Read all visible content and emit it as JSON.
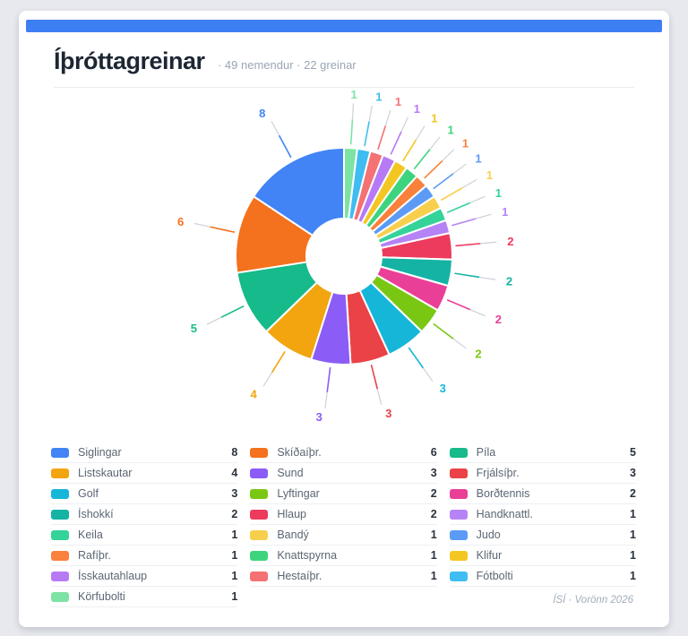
{
  "header": {
    "title": "Íþróttagreinar",
    "subtitle": "· 49 nemendur · 22 greinar"
  },
  "footer": {
    "text": "ÍSÍ · Vorönn 2026"
  },
  "theme": {
    "accent_bar": "#3e7ef3",
    "page_bg": "#e7e9ee",
    "card_bg": "#ffffff",
    "title_color": "#1d2733",
    "subtitle_color": "#9aa6b4",
    "legend_label_color": "#5b6673",
    "legend_value_color": "#2a323e",
    "connector_gray": "#ccd2d9"
  },
  "chart_data": {
    "type": "pie",
    "title": "Íþróttagreinar",
    "subtitle": "· 49 nemendur · 22 greinar",
    "donut": true,
    "inner_radius_ratio": 0.35,
    "start_angle_deg": 0,
    "direction": "clockwise",
    "data_labels": "values outside with colored connectors",
    "slices": [
      {
        "label": "Körfubolti",
        "value": 1,
        "color": "#7de3a4"
      },
      {
        "label": "Fótbolti",
        "value": 1,
        "color": "#3fbcf2"
      },
      {
        "label": "Hestaíþr.",
        "value": 1,
        "color": "#f47174"
      },
      {
        "label": "Ísskautahlaup",
        "value": 1,
        "color": "#b77af5"
      },
      {
        "label": "Klifur",
        "value": 1,
        "color": "#f3c622"
      },
      {
        "label": "Knattspyrna",
        "value": 1,
        "color": "#3ed47e"
      },
      {
        "label": "Rafíþr.",
        "value": 1,
        "color": "#f9813c"
      },
      {
        "label": "Judo",
        "value": 1,
        "color": "#5b9bf5"
      },
      {
        "label": "Bandý",
        "value": 1,
        "color": "#f8cf4d"
      },
      {
        "label": "Keila",
        "value": 1,
        "color": "#34d399"
      },
      {
        "label": "Handknattl.",
        "value": 1,
        "color": "#b583f5"
      },
      {
        "label": "Hlaup",
        "value": 2,
        "color": "#ec3b5d"
      },
      {
        "label": "Íshokkí",
        "value": 2,
        "color": "#14b3a4"
      },
      {
        "label": "Borðtennis",
        "value": 2,
        "color": "#ea3f97"
      },
      {
        "label": "Lyftingar",
        "value": 2,
        "color": "#7ac713"
      },
      {
        "label": "Golf",
        "value": 3,
        "color": "#16b6d9"
      },
      {
        "label": "Frjálsíþr.",
        "value": 3,
        "color": "#ea4247"
      },
      {
        "label": "Sund",
        "value": 3,
        "color": "#8c5cf6"
      },
      {
        "label": "Listskautar",
        "value": 4,
        "color": "#f2a50f"
      },
      {
        "label": "Píla",
        "value": 5,
        "color": "#17ba8a"
      },
      {
        "label": "Skíðaíþr.",
        "value": 6,
        "color": "#f4711d"
      },
      {
        "label": "Siglingar",
        "value": 8,
        "color": "#4284f5"
      }
    ]
  },
  "legend": {
    "columns": 3,
    "items": [
      {
        "label": "Siglingar",
        "value": 8,
        "color": "#4284f5"
      },
      {
        "label": "Skíðaíþr.",
        "value": 6,
        "color": "#f4711d"
      },
      {
        "label": "Píla",
        "value": 5,
        "color": "#17ba8a"
      },
      {
        "label": "Listskautar",
        "value": 4,
        "color": "#f2a50f"
      },
      {
        "label": "Sund",
        "value": 3,
        "color": "#8c5cf6"
      },
      {
        "label": "Frjálsíþr.",
        "value": 3,
        "color": "#ea4247"
      },
      {
        "label": "Golf",
        "value": 3,
        "color": "#16b6d9"
      },
      {
        "label": "Lyftingar",
        "value": 2,
        "color": "#7ac713"
      },
      {
        "label": "Borðtennis",
        "value": 2,
        "color": "#ea3f97"
      },
      {
        "label": "Íshokkí",
        "value": 2,
        "color": "#14b3a4"
      },
      {
        "label": "Hlaup",
        "value": 2,
        "color": "#ec3b5d"
      },
      {
        "label": "Handknattl.",
        "value": 1,
        "color": "#b583f5"
      },
      {
        "label": "Keila",
        "value": 1,
        "color": "#34d399"
      },
      {
        "label": "Bandý",
        "value": 1,
        "color": "#f8cf4d"
      },
      {
        "label": "Judo",
        "value": 1,
        "color": "#5b9bf5"
      },
      {
        "label": "Rafíþr.",
        "value": 1,
        "color": "#f9813c"
      },
      {
        "label": "Knattspyrna",
        "value": 1,
        "color": "#3ed47e"
      },
      {
        "label": "Klifur",
        "value": 1,
        "color": "#f3c622"
      },
      {
        "label": "Ísskautahlaup",
        "value": 1,
        "color": "#b77af5"
      },
      {
        "label": "Hestaíþr.",
        "value": 1,
        "color": "#f47174"
      },
      {
        "label": "Fótbolti",
        "value": 1,
        "color": "#3fbcf2"
      },
      {
        "label": "Körfubolti",
        "value": 1,
        "color": "#7de3a4"
      }
    ]
  }
}
